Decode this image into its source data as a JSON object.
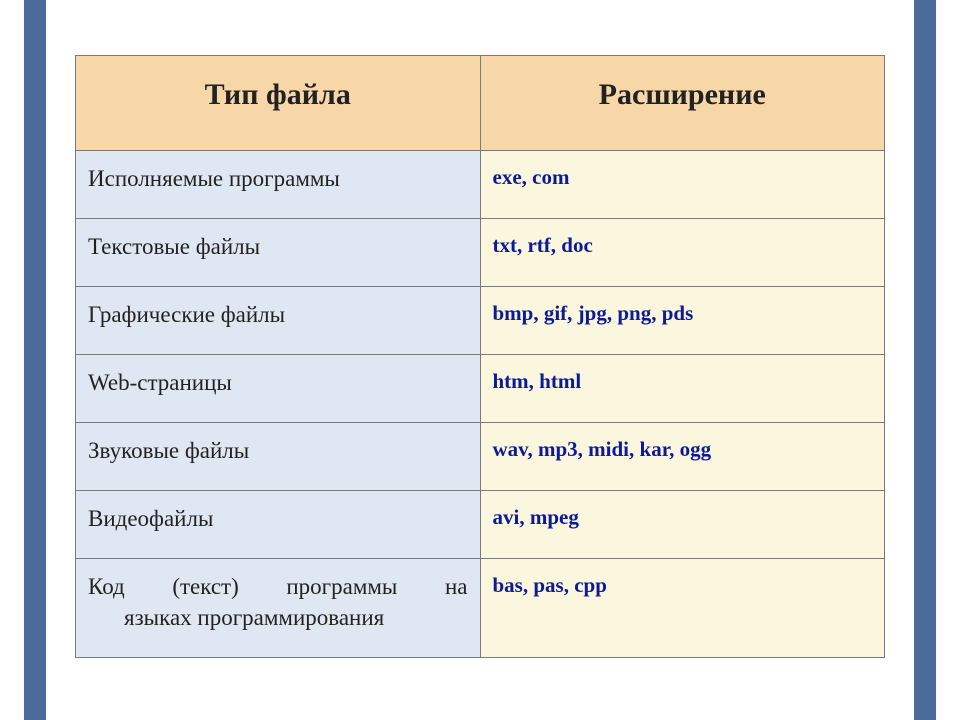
{
  "table": {
    "columns": [
      "Тип файла",
      "Расширение"
    ],
    "header_bg": "#f7d6a8",
    "type_col_bg": "#dfe8f2",
    "ext_col_bg": "#fbf6de",
    "border_color": "#7a7a7a",
    "header_fontsize": 30,
    "type_fontsize": 23,
    "ext_fontsize": 21,
    "type_text_color": "#222222",
    "ext_text_color": "#0c1a9a",
    "rows": [
      {
        "type": "Исполняемые программы",
        "ext": "exe, com"
      },
      {
        "type": "Текстовые файлы",
        "ext": "txt, rtf, doc"
      },
      {
        "type": "Графические файлы",
        "ext": "bmp, gif, jpg, png, pds"
      },
      {
        "type": "Web-страницы",
        "ext": "htm, html"
      },
      {
        "type": "Звуковые файлы",
        "ext": "wav, mp3, midi, kar, ogg"
      },
      {
        "type": "Видеофайлы",
        "ext": "avi, mpeg"
      },
      {
        "type_line1": "Код (текст) программы на",
        "type_line2": "языках программирования",
        "ext": "bas, pas, cpp"
      }
    ]
  },
  "frame": {
    "color": "#4a6a9a"
  }
}
